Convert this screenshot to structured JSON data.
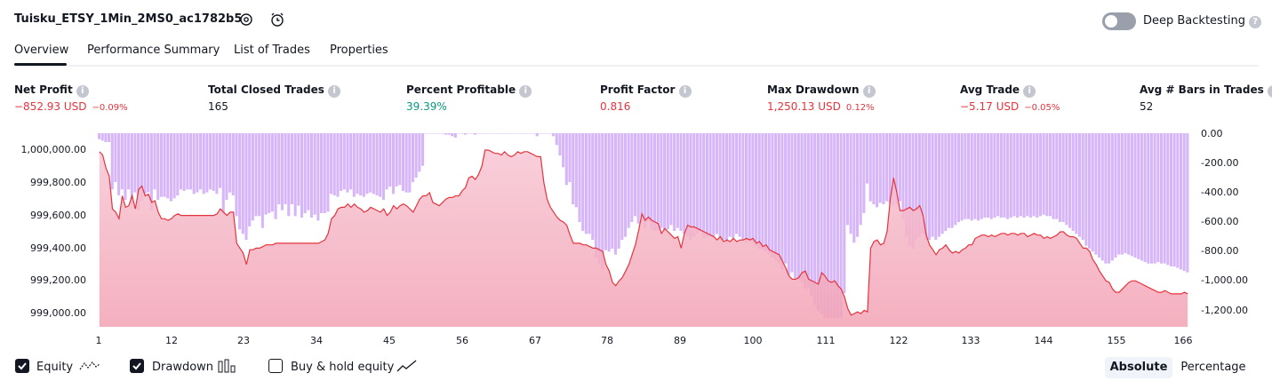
{
  "header": {
    "title": "Tuisku_ETSY_1Min_2MS0_ac1782b5",
    "settings_icon": "gear-icon",
    "alert_icon": "alarm-clock-icon",
    "deep_backtesting_label": "Deep Backtesting",
    "deep_backtesting_enabled": false
  },
  "tabs": [
    {
      "label": "Overview",
      "active": true
    },
    {
      "label": "Performance Summary",
      "active": false
    },
    {
      "label": "List of Trades",
      "active": false
    },
    {
      "label": "Properties",
      "active": false
    }
  ],
  "stats": [
    {
      "label": "Net Profit",
      "value": "−852.93 USD",
      "pct": "−0.09%",
      "tone": "neg"
    },
    {
      "label": "Total Closed Trades",
      "value": "165",
      "pct": "",
      "tone": "plain"
    },
    {
      "label": "Percent Profitable",
      "value": "39.39%",
      "pct": "",
      "tone": "pos"
    },
    {
      "label": "Profit Factor",
      "value": "0.816",
      "pct": "",
      "tone": "neg"
    },
    {
      "label": "Max Drawdown",
      "value": "1,250.13 USD",
      "pct": "0.12%",
      "tone": "neg"
    },
    {
      "label": "Avg Trade",
      "value": "−5.17 USD",
      "pct": "−0.05%",
      "tone": "neg"
    },
    {
      "label": "Avg # Bars in Trades",
      "value": "52",
      "pct": "",
      "tone": "plain"
    }
  ],
  "chart_data": {
    "type": "area",
    "x_ticks": [
      "1",
      "12",
      "23",
      "34",
      "45",
      "56",
      "67",
      "78",
      "89",
      "100",
      "111",
      "122",
      "133",
      "144",
      "155",
      "166"
    ],
    "y_left_ticks": [
      "1,000,000.00",
      "999,800.00",
      "999,600.00",
      "999,400.00",
      "999,200.00",
      "999,000.00"
    ],
    "y_right_ticks": [
      "0.00",
      "-200.00",
      "-400.00",
      "-600.00",
      "-800.00",
      "-1,000.00",
      "-1,200.00"
    ],
    "y_left_range": [
      998930,
      1000100
    ],
    "y_right_range": [
      -1300,
      0
    ],
    "series": [
      {
        "name": "Equity",
        "color": "#e5343d",
        "values": [
          999990,
          999970,
          999890,
          999840,
          999640,
          999620,
          999580,
          999720,
          999650,
          999660,
          999720,
          999640,
          999760,
          999780,
          999720,
          999730,
          999680,
          999690,
          999620,
          999580,
          999580,
          999570,
          999580,
          999600,
          999610,
          999600,
          999600,
          999600,
          999600,
          999600,
          999600,
          999600,
          999600,
          999600,
          999600,
          999600,
          999610,
          999640,
          999620,
          999600,
          999620,
          999620,
          999430,
          999400,
          999370,
          999300,
          999390,
          999390,
          999400,
          999400,
          999410,
          999420,
          999420,
          999420,
          999430,
          999430,
          999430,
          999430,
          999430,
          999430,
          999430,
          999430,
          999430,
          999430,
          999430,
          999430,
          999430,
          999430,
          999440,
          999450,
          999490,
          999580,
          999600,
          999640,
          999650,
          999650,
          999670,
          999650,
          999670,
          999650,
          999640,
          999620,
          999630,
          999650,
          999640,
          999630,
          999620,
          999640,
          999600,
          999620,
          999660,
          999640,
          999660,
          999670,
          999660,
          999640,
          999620,
          999660,
          999700,
          999720,
          999720,
          999740,
          999680,
          999670,
          999660,
          999680,
          999700,
          999710,
          999710,
          999720,
          999720,
          999750,
          999770,
          999830,
          999840,
          999820,
          999850,
          999900,
          1000000,
          1000000,
          999990,
          999980,
          999980,
          999970,
          999990,
          999970,
          999960,
          999970,
          999990,
          999980,
          999990,
          999990,
          999980,
          999970,
          999960,
          999960,
          999800,
          999700,
          999650,
          999620,
          999590,
          999570,
          999560,
          999540,
          999480,
          999430,
          999430,
          999430,
          999420,
          999420,
          999410,
          999400,
          999400,
          999390,
          999380,
          999300,
          999260,
          999190,
          999170,
          999200,
          999220,
          999260,
          999300,
          999360,
          999420,
          999510,
          999610,
          999570,
          999590,
          999570,
          999560,
          999550,
          999490,
          999520,
          999500,
          999480,
          999460,
          999470,
          999400,
          999490,
          999540,
          999530,
          999530,
          999520,
          999510,
          999500,
          999490,
          999480,
          999470,
          999450,
          999470,
          999440,
          999450,
          999440,
          999460,
          999440,
          999450,
          999450,
          999460,
          999450,
          999460,
          999430,
          999440,
          999410,
          999420,
          999390,
          999380,
          999370,
          999360,
          999320,
          999280,
          999230,
          999210,
          999210,
          999220,
          999250,
          999260,
          999210,
          999200,
          999190,
          999180,
          999250,
          999230,
          999200,
          999190,
          999200,
          999170,
          999150,
          999100,
          999030,
          998990,
          999000,
          999010,
          999000,
          999020,
          999010,
          999400,
          999440,
          999450,
          999420,
          999430,
          999500,
          999700,
          999830,
          999740,
          999630,
          999630,
          999640,
          999650,
          999630,
          999640,
          999660,
          999600,
          999480,
          999420,
          999390,
          999360,
          999390,
          999400,
          999420,
          999390,
          999370,
          999380,
          999370,
          999390,
          999400,
          999420,
          999420,
          999460,
          999470,
          999480,
          999480,
          999470,
          999480,
          999470,
          999480,
          999490,
          999490,
          999480,
          999490,
          999490,
          999480,
          999490,
          999490,
          999470,
          999480,
          999490,
          999480,
          999480,
          999460,
          999470,
          999460,
          999470,
          999480,
          999500,
          999500,
          999480,
          999470,
          999470,
          999460,
          999430,
          999400,
          999400,
          999380,
          999330,
          999300,
          999260,
          999230,
          999200,
          999190,
          999150,
          999130,
          999130,
          999150,
          999170,
          999190,
          999200,
          999200,
          999190,
          999180,
          999170,
          999160,
          999150,
          999140,
          999130,
          999130,
          999140,
          999130,
          999120,
          999120,
          999120,
          999120,
          999130,
          999120
        ]
      },
      {
        "name": "Drawdown",
        "color": "#c89cf7",
        "values": [
          -40,
          -50,
          -60,
          -60,
          -380,
          -330,
          -420,
          -380,
          -450,
          -380,
          -480,
          -400,
          -520,
          -460,
          -410,
          -400,
          -520,
          -380,
          -450,
          -430,
          -430,
          -440,
          -460,
          -440,
          -420,
          -380,
          -390,
          -380,
          -380,
          -410,
          -400,
          -380,
          -410,
          -400,
          -380,
          -390,
          -410,
          -370,
          -550,
          -450,
          -400,
          -420,
          -560,
          -650,
          -680,
          -720,
          -630,
          -590,
          -560,
          -560,
          -640,
          -550,
          -540,
          -530,
          -580,
          -480,
          -520,
          -480,
          -560,
          -480,
          -560,
          -490,
          -570,
          -540,
          -520,
          -570,
          -550,
          -590,
          -540,
          -540,
          -530,
          -410,
          -420,
          -430,
          -390,
          -380,
          -400,
          -380,
          -430,
          -410,
          -420,
          -430,
          -410,
          -400,
          -410,
          -420,
          -430,
          -450,
          -380,
          -360,
          -410,
          -360,
          -350,
          -390,
          -400,
          -400,
          -330,
          -300,
          -260,
          -220,
          0,
          0,
          0,
          0,
          0,
          0,
          -10,
          -10,
          -20,
          -30,
          0,
          0,
          -10,
          0,
          0,
          -10,
          0,
          0,
          0,
          0,
          0,
          0,
          0,
          0,
          0,
          0,
          0,
          0,
          0,
          0,
          0,
          0,
          0,
          0,
          -20,
          0,
          0,
          0,
          0,
          -20,
          -80,
          -150,
          -230,
          -350,
          -330,
          -480,
          -500,
          -600,
          -660,
          -680,
          -680,
          -720,
          -840,
          -880,
          -920,
          -790,
          -800,
          -780,
          -820,
          -780,
          -720,
          -700,
          -640,
          -600,
          -560,
          -610,
          -600,
          -640,
          -600,
          -650,
          -660,
          -660,
          -640,
          -660,
          -650,
          -620,
          -660,
          -640,
          -660,
          -680,
          -700,
          -720,
          -700,
          -680,
          -660,
          -710,
          -700,
          -690,
          -700,
          -680,
          -700,
          -720,
          -740,
          -700,
          -710,
          -680,
          -700,
          -720,
          -740,
          -720,
          -740,
          -760,
          -780,
          -790,
          -800,
          -820,
          -840,
          -860,
          -880,
          -920,
          -880,
          -960,
          -940,
          -980,
          -990,
          -1000,
          -1050,
          -1050,
          -1100,
          -1160,
          -1200,
          -1220,
          -1250,
          -1250,
          -1250,
          -1250,
          -1250,
          -1250,
          -1080,
          -620,
          -680,
          -740,
          -700,
          -620,
          -540,
          -340,
          -460,
          -480,
          -500,
          -470,
          -480,
          -460,
          -470,
          -490,
          -480,
          -460,
          -580,
          -700,
          -760,
          -780,
          -720,
          -700,
          -680,
          -720,
          -720,
          -700,
          -720,
          -700,
          -680,
          -660,
          -640,
          -640,
          -620,
          -600,
          -590,
          -580,
          -580,
          -590,
          -580,
          -590,
          -580,
          -570,
          -570,
          -580,
          -570,
          -560,
          -570,
          -570,
          -580,
          -570,
          -560,
          -570,
          -560,
          -570,
          -560,
          -570,
          -560,
          -570,
          -560,
          -550,
          -560,
          -560,
          -580,
          -580,
          -600,
          -600,
          -620,
          -640,
          -660,
          -680,
          -700,
          -720,
          -760,
          -780,
          -800,
          -820,
          -840,
          -860,
          -880,
          -880,
          -860,
          -840,
          -820,
          -820,
          -810,
          -820,
          -830,
          -840,
          -850,
          -860,
          -870,
          -880,
          -880,
          -880,
          -870,
          -880,
          -880,
          -890,
          -900,
          -900,
          -910,
          -920,
          -930,
          -940,
          -950
        ]
      }
    ],
    "xlabel": "",
    "ylabel": ""
  },
  "footer": {
    "legend": [
      {
        "label": "Equity",
        "checked": true,
        "icon": "equity-line-icon"
      },
      {
        "label": "Drawdown",
        "checked": true,
        "icon": "drawdown-bars-icon"
      },
      {
        "label": "Buy & hold equity",
        "checked": false,
        "icon": "buy-hold-line-icon"
      }
    ],
    "scale_buttons": [
      {
        "label": "Absolute",
        "active": true
      },
      {
        "label": "Percentage",
        "active": false
      }
    ]
  }
}
